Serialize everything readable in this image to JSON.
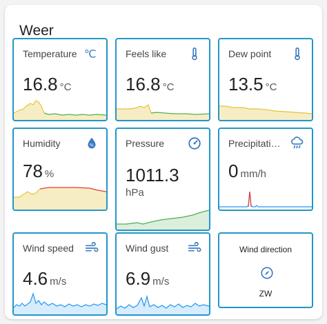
{
  "card": {
    "title": "Weer"
  },
  "colors": {
    "border": "#2196c8",
    "icon": "#3c7bc0",
    "green": "#4caf50",
    "yellow": "#e6c23a",
    "red": "#e53935",
    "blue": "#2196f3"
  },
  "tiles": [
    {
      "name": "Temperature",
      "value": "16.8",
      "unit": "°C",
      "icon": "thermometer-celsius-icon"
    },
    {
      "name": "Feels like",
      "value": "16.8",
      "unit": "°C",
      "icon": "thermometer-icon"
    },
    {
      "name": "Dew point",
      "value": "13.5",
      "unit": "°C",
      "icon": "thermometer-icon"
    },
    {
      "name": "Humidity",
      "value": "78",
      "unit": "%",
      "icon": "water-percent-icon"
    },
    {
      "name": "Pressure",
      "value": "1011.3",
      "unit": "hPa",
      "icon": "gauge-icon"
    },
    {
      "name": "Precipitati…",
      "value": "0",
      "unit": "mm/h",
      "icon": "weather-rainy-icon"
    },
    {
      "name": "Wind speed",
      "value": "4.6",
      "unit": "m/s",
      "icon": "weather-windy-icon"
    },
    {
      "name": "Wind gust",
      "value": "6.9",
      "unit": "m/s",
      "icon": "weather-windy-icon"
    }
  ],
  "wind_direction": {
    "name": "Wind direction",
    "state": "ZW",
    "icon": "compass-icon"
  }
}
